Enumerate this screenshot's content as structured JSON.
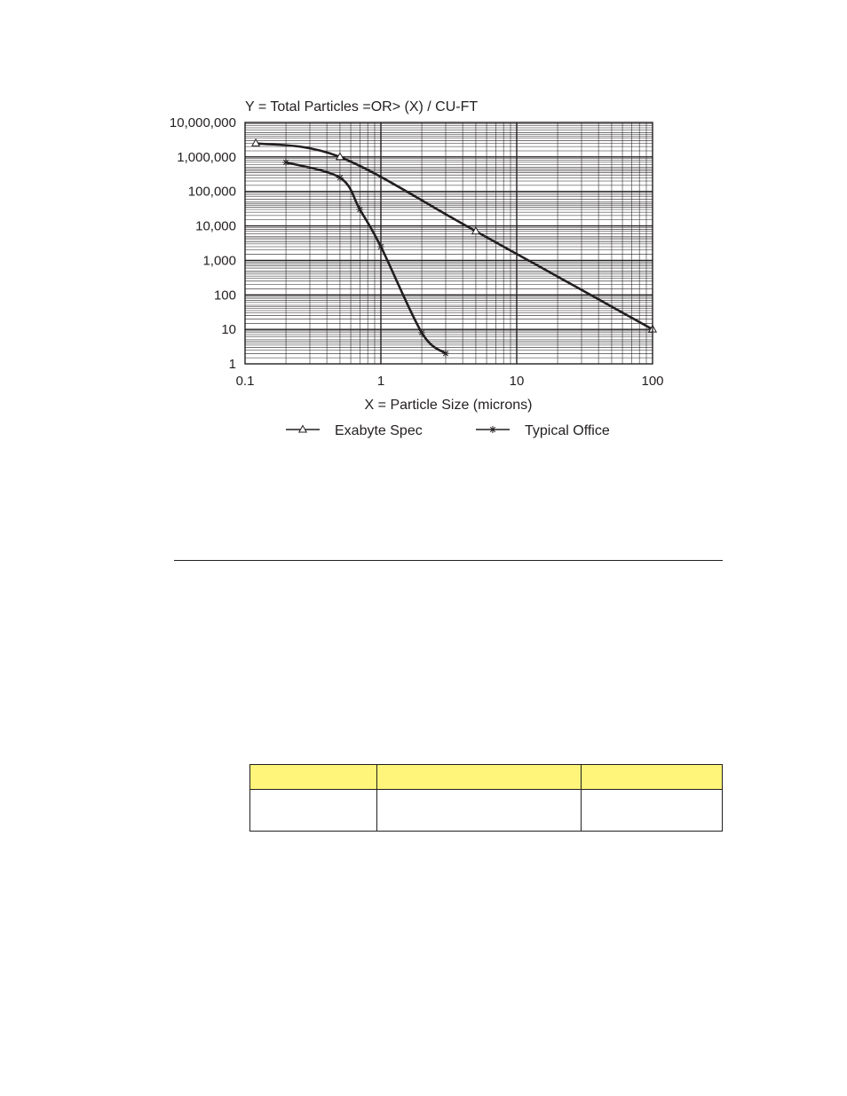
{
  "chart_data": {
    "type": "line",
    "title": "Y = Total Particles =OR> (X) / CU-FT",
    "xlabel": "X = Particle Size (microns)",
    "ylabel": "",
    "xscale": "log",
    "yscale": "log",
    "xlim": [
      0.1,
      100
    ],
    "ylim": [
      1,
      10000000
    ],
    "x_ticks": [
      "0.1",
      "1",
      "10",
      "100"
    ],
    "y_ticks": [
      "1",
      "10",
      "100",
      "1,000",
      "10,000",
      "100,000",
      "1,000,000",
      "10,000,000"
    ],
    "grid": true,
    "legend_position": "bottom",
    "series": [
      {
        "name": "Exabyte Spec",
        "marker": "triangle",
        "color": "#231f20",
        "points": [
          [
            0.12,
            2500000
          ],
          [
            0.5,
            1000000
          ],
          [
            5,
            7000
          ],
          [
            100,
            10
          ]
        ]
      },
      {
        "name": "Typical Office",
        "marker": "asterisk",
        "color": "#231f20",
        "points": [
          [
            0.2,
            700000
          ],
          [
            0.5,
            250000
          ],
          [
            0.7,
            30000
          ],
          [
            1,
            2500
          ],
          [
            2,
            8
          ],
          [
            3,
            2
          ]
        ]
      }
    ]
  },
  "table": {
    "header_color": "#fff57a",
    "columns": [
      "",
      "",
      ""
    ],
    "rows": [
      [
        "",
        "",
        ""
      ]
    ]
  }
}
